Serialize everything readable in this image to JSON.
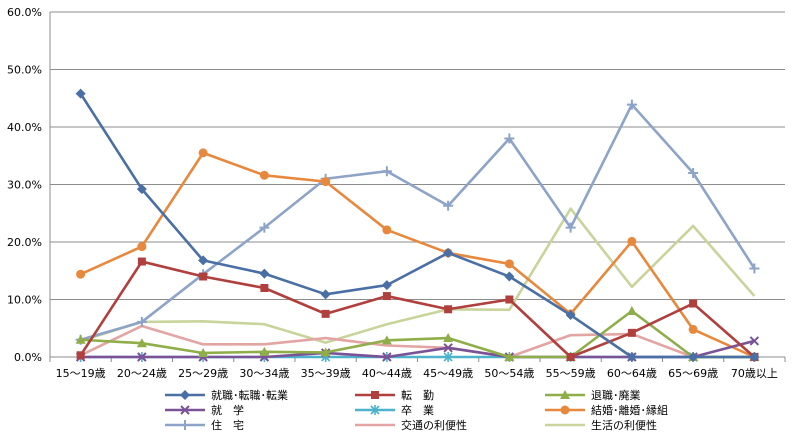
{
  "chart_data": {
    "type": "line",
    "title": "",
    "xlabel": "",
    "ylabel": "",
    "ylim": [
      0,
      60
    ],
    "ytick_step": 10,
    "ytick_labels": [
      "0.0%",
      "10.0%",
      "20.0%",
      "30.0%",
      "40.0%",
      "50.0%",
      "60.0%"
    ],
    "grid": "horizontal",
    "legend_position": "bottom",
    "categories": [
      "15～19歳",
      "20～24歳",
      "25～29歳",
      "30～34歳",
      "35～39歳",
      "40～44歳",
      "45～49歳",
      "50～54歳",
      "55～59歳",
      "60～64歳",
      "65～69歳",
      "70歳以上"
    ],
    "series": [
      {
        "name": "就職･転職･転業",
        "color": "#4a6fa5",
        "marker": "diamond",
        "values": [
          45.8,
          29.2,
          16.8,
          14.5,
          10.9,
          12.5,
          18.1,
          14.0,
          7.3,
          0.0,
          0.0,
          0.0
        ]
      },
      {
        "name": "転　勤",
        "color": "#b0403e",
        "marker": "square",
        "values": [
          0.3,
          16.6,
          14.0,
          12.0,
          7.5,
          10.6,
          8.3,
          10.0,
          0.0,
          4.2,
          9.3,
          0.0
        ]
      },
      {
        "name": "退職･廃業",
        "color": "#8fae4a",
        "marker": "triangle",
        "values": [
          3.0,
          2.4,
          0.7,
          0.9,
          0.8,
          2.9,
          3.3,
          0.0,
          0.0,
          8.0,
          0.0,
          0.0
        ]
      },
      {
        "name": "就　学",
        "color": "#7a5296",
        "marker": "x",
        "values": [
          0.0,
          0.0,
          0.0,
          0.0,
          0.7,
          0.0,
          1.6,
          0.0,
          0.0,
          0.0,
          0.0,
          2.8
        ]
      },
      {
        "name": "卒　業",
        "color": "#4db2cc",
        "marker": "asterisk",
        "values": [
          0.0,
          0.0,
          0.0,
          0.0,
          0.0,
          0.0,
          0.0,
          0.0,
          0.0,
          0.0,
          0.0,
          0.0
        ]
      },
      {
        "name": "結婚･離婚･縁組",
        "color": "#e7883d",
        "marker": "circle",
        "values": [
          14.4,
          19.2,
          35.5,
          31.6,
          30.5,
          22.1,
          18.1,
          16.2,
          7.5,
          20.1,
          4.8,
          0.0
        ]
      },
      {
        "name": "住　宅",
        "color": "#8ea3c8",
        "marker": "plus",
        "values": [
          3.0,
          6.1,
          14.4,
          22.5,
          31.0,
          32.3,
          26.3,
          38.0,
          22.5,
          43.9,
          32.0,
          15.4
        ]
      },
      {
        "name": "交通の利便性",
        "color": "#e3a5a3",
        "marker": "none",
        "values": [
          0.3,
          5.4,
          2.2,
          2.2,
          3.3,
          2.0,
          1.6,
          0.0,
          3.8,
          4.0,
          0.0,
          0.0
        ]
      },
      {
        "name": "生活の利便性",
        "color": "#c8d49b",
        "marker": "none",
        "values": [
          2.8,
          6.1,
          6.2,
          5.7,
          2.5,
          5.7,
          8.3,
          8.2,
          25.8,
          12.2,
          22.8,
          10.6
        ]
      }
    ]
  }
}
